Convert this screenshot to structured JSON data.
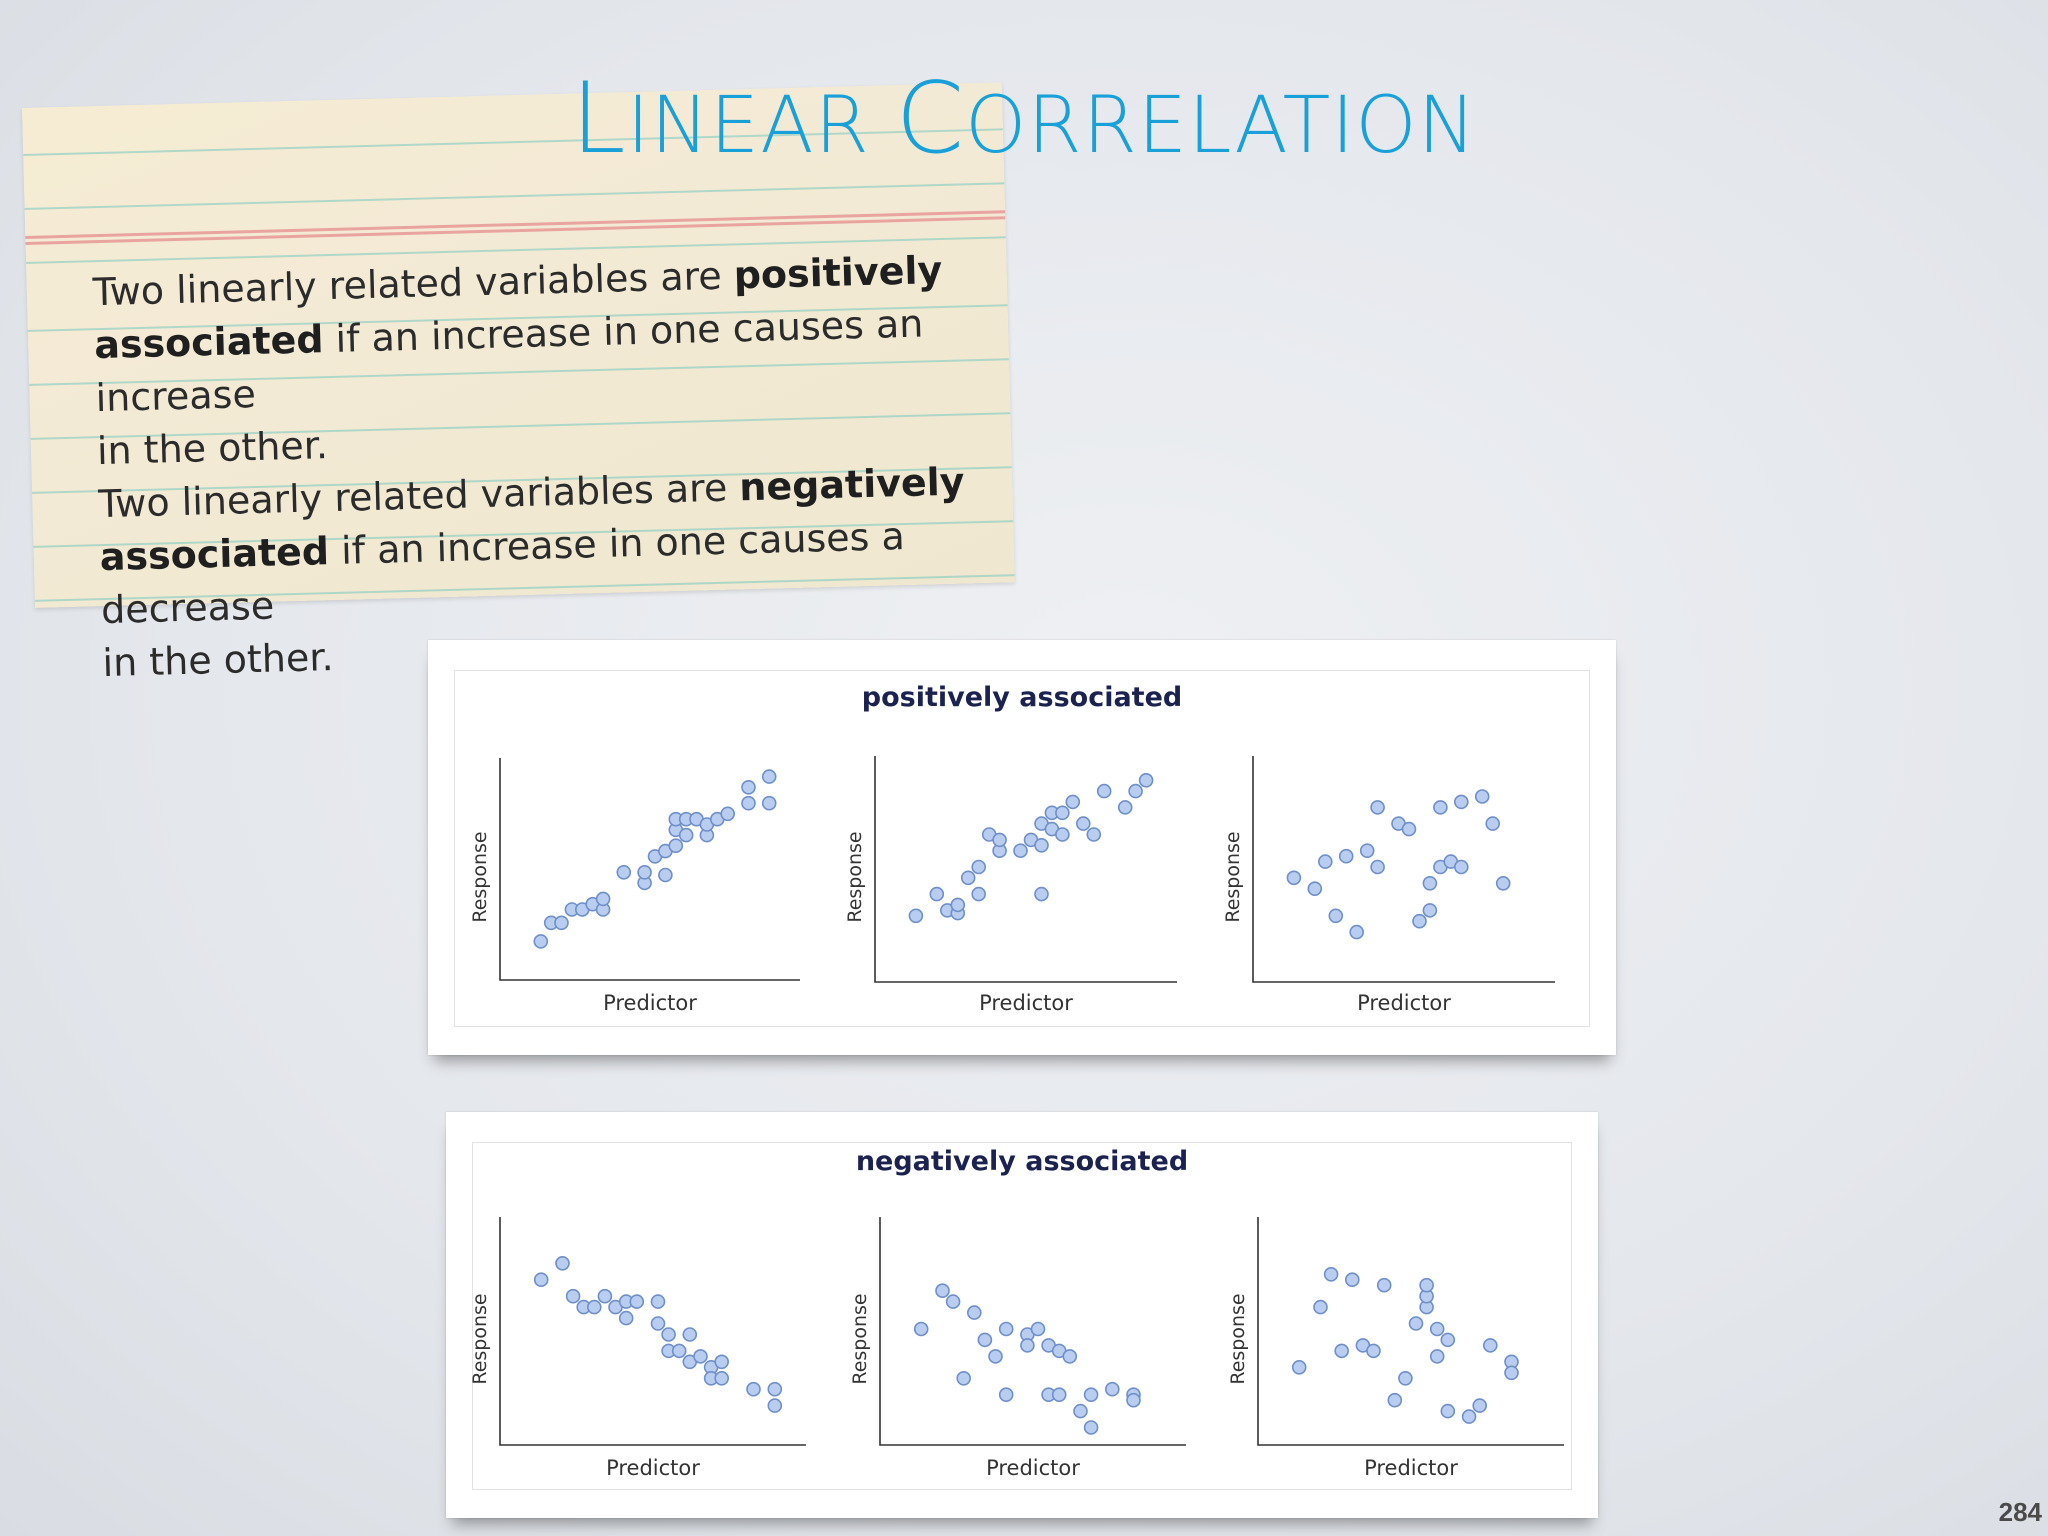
{
  "title": {
    "cap1": "L",
    "rest1": "INEAR ",
    "cap2": "C",
    "rest2": "ORRELATION"
  },
  "card": {
    "p1_a": "Two linearly related variables are ",
    "p1_b": "positively",
    "p1_c": "associated",
    "p1_d": " if an increase in one causes an increase",
    "p1_e": "in the other.",
    "p2_a": "Two linearly related variables are ",
    "p2_b": "negatively",
    "p2_c": "associated",
    "p2_d": " if an increase in one causes a decrease",
    "p2_e": "in the other."
  },
  "colors": {
    "title": "#1aa0d8",
    "point_fill": "#b9cdf0",
    "point_stroke": "#6f8fc9",
    "panel_title": "#1b2250"
  },
  "page_number": "284",
  "chart_data": [
    {
      "type": "scatter",
      "title": "positively associated",
      "plots": [
        {
          "xlabel": "Predictor",
          "ylabel": "Response",
          "points": [
            [
              1,
              3
            ],
            [
              1.5,
              6.5
            ],
            [
              2,
              6.5
            ],
            [
              2.5,
              9
            ],
            [
              3,
              9
            ],
            [
              3.5,
              10
            ],
            [
              4,
              9
            ],
            [
              4,
              11
            ],
            [
              5,
              16
            ],
            [
              6,
              14
            ],
            [
              6,
              16
            ],
            [
              6.5,
              19
            ],
            [
              7,
              15.5
            ],
            [
              7,
              20
            ],
            [
              7.5,
              21
            ],
            [
              7.5,
              24
            ],
            [
              7.5,
              26
            ],
            [
              8,
              23
            ],
            [
              8,
              26
            ],
            [
              8.5,
              26
            ],
            [
              9,
              23
            ],
            [
              9,
              25
            ],
            [
              9.5,
              26
            ],
            [
              10,
              27
            ],
            [
              11,
              29
            ],
            [
              11,
              32
            ],
            [
              12,
              34
            ],
            [
              12,
              29
            ]
          ]
        },
        {
          "xlabel": "Predictor",
          "ylabel": "Response",
          "points": [
            [
              1,
              8
            ],
            [
              2,
              12
            ],
            [
              2.5,
              9
            ],
            [
              3,
              8.5
            ],
            [
              3.5,
              15
            ],
            [
              3,
              10
            ],
            [
              4,
              12
            ],
            [
              4,
              17
            ],
            [
              4.5,
              23
            ],
            [
              5,
              20
            ],
            [
              5,
              22
            ],
            [
              6,
              20
            ],
            [
              6.5,
              22
            ],
            [
              7,
              12
            ],
            [
              7,
              21
            ],
            [
              7,
              25
            ],
            [
              7.5,
              24
            ],
            [
              7.5,
              27
            ],
            [
              8,
              27
            ],
            [
              8,
              23
            ],
            [
              8.5,
              29
            ],
            [
              9,
              25
            ],
            [
              9.5,
              23
            ],
            [
              10,
              31
            ],
            [
              11,
              28
            ],
            [
              11.5,
              31
            ],
            [
              12,
              33
            ]
          ]
        },
        {
          "xlabel": "Predictor",
          "ylabel": "Response",
          "points": [
            [
              1,
              15
            ],
            [
              2,
              13
            ],
            [
              2.5,
              18
            ],
            [
              3,
              8
            ],
            [
              3.5,
              19
            ],
            [
              4,
              5
            ],
            [
              4.5,
              20
            ],
            [
              5,
              17
            ],
            [
              5,
              28
            ],
            [
              6,
              25
            ],
            [
              6.5,
              24
            ],
            [
              7,
              7
            ],
            [
              7.5,
              9
            ],
            [
              7.5,
              14
            ],
            [
              8,
              17
            ],
            [
              8,
              28
            ],
            [
              8.5,
              18
            ],
            [
              9,
              29
            ],
            [
              9,
              17
            ],
            [
              10,
              30
            ],
            [
              10.5,
              25
            ],
            [
              11,
              14
            ]
          ]
        }
      ]
    },
    {
      "type": "scatter",
      "title": "negatively associated",
      "plots": [
        {
          "xlabel": "Predictor",
          "ylabel": "Response",
          "points": [
            [
              1,
              26
            ],
            [
              2,
              29
            ],
            [
              2.5,
              23
            ],
            [
              3,
              21
            ],
            [
              3.5,
              21
            ],
            [
              4,
              23
            ],
            [
              4.5,
              21
            ],
            [
              5,
              19
            ],
            [
              5,
              22
            ],
            [
              5.5,
              22
            ],
            [
              6.5,
              22
            ],
            [
              6.5,
              18
            ],
            [
              7,
              16
            ],
            [
              7,
              13
            ],
            [
              7.5,
              13
            ],
            [
              8,
              16
            ],
            [
              8,
              11
            ],
            [
              8.5,
              12
            ],
            [
              9,
              10
            ],
            [
              9,
              8
            ],
            [
              9.5,
              8
            ],
            [
              9.5,
              11
            ],
            [
              11,
              6
            ],
            [
              12,
              6
            ],
            [
              12,
              3
            ]
          ]
        },
        {
          "xlabel": "Predictor",
          "ylabel": "Response",
          "points": [
            [
              1,
              17
            ],
            [
              2,
              24
            ],
            [
              2.5,
              22
            ],
            [
              3,
              8
            ],
            [
              3.5,
              20
            ],
            [
              4,
              15
            ],
            [
              4.5,
              12
            ],
            [
              5,
              17
            ],
            [
              5,
              5
            ],
            [
              6,
              16
            ],
            [
              6,
              14
            ],
            [
              6.5,
              17
            ],
            [
              7,
              14
            ],
            [
              7,
              5
            ],
            [
              7.5,
              13
            ],
            [
              7.5,
              5
            ],
            [
              8,
              12
            ],
            [
              8.5,
              2
            ],
            [
              9,
              5
            ],
            [
              9,
              -1
            ],
            [
              10,
              6
            ],
            [
              11,
              5
            ],
            [
              11,
              4
            ]
          ]
        },
        {
          "xlabel": "Predictor",
          "ylabel": "Response",
          "points": [
            [
              1,
              10
            ],
            [
              2,
              21
            ],
            [
              2.5,
              27
            ],
            [
              3,
              13
            ],
            [
              3.5,
              26
            ],
            [
              4,
              14
            ],
            [
              4.5,
              13
            ],
            [
              5,
              25
            ],
            [
              5.5,
              4
            ],
            [
              6,
              8
            ],
            [
              6.5,
              18
            ],
            [
              7,
              21
            ],
            [
              7,
              23
            ],
            [
              7,
              25
            ],
            [
              7.5,
              17
            ],
            [
              7.5,
              12
            ],
            [
              8,
              2
            ],
            [
              8,
              15
            ],
            [
              9,
              1
            ],
            [
              9.5,
              3
            ],
            [
              10,
              14
            ],
            [
              11,
              11
            ],
            [
              11,
              9
            ]
          ]
        }
      ]
    }
  ]
}
